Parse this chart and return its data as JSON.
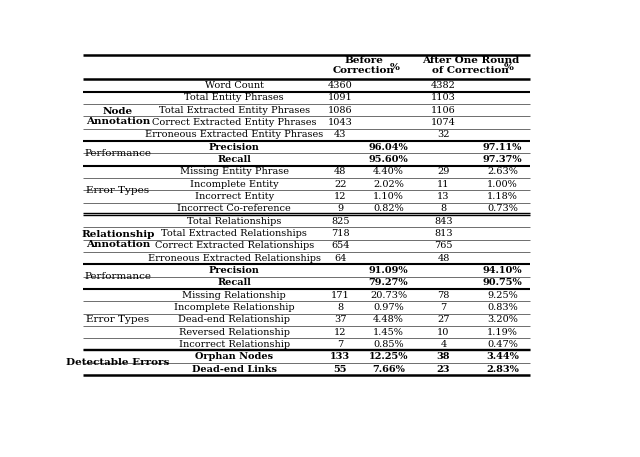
{
  "rows": [
    {
      "section": "",
      "label": "Word Count",
      "bc_val": "4360",
      "bc_pct": "",
      "ac_val": "4382",
      "ac_pct": "",
      "bold_label": false,
      "bold_pct": false,
      "section_bold": false
    },
    {
      "section": "Node\nAnnotation",
      "label": "Total Entity Phrases",
      "bc_val": "1091",
      "bc_pct": "",
      "ac_val": "1103",
      "ac_pct": "",
      "bold_label": false,
      "bold_pct": false,
      "section_bold": true
    },
    {
      "section": "",
      "label": "Total Extracted Entity Phrases",
      "bc_val": "1086",
      "bc_pct": "",
      "ac_val": "1106",
      "ac_pct": "",
      "bold_label": false,
      "bold_pct": false,
      "section_bold": false
    },
    {
      "section": "",
      "label": "Correct Extracted Entity Phrases",
      "bc_val": "1043",
      "bc_pct": "",
      "ac_val": "1074",
      "ac_pct": "",
      "bold_label": false,
      "bold_pct": false,
      "section_bold": false
    },
    {
      "section": "",
      "label": "Erroneous Extracted Entity Phrases",
      "bc_val": "43",
      "bc_pct": "",
      "ac_val": "32",
      "ac_pct": "",
      "bold_label": false,
      "bold_pct": false,
      "section_bold": false
    },
    {
      "section": "Performance",
      "label": "Precision",
      "bc_val": "",
      "bc_pct": "96.04%",
      "ac_val": "",
      "ac_pct": "97.11%",
      "bold_label": true,
      "bold_pct": true,
      "section_bold": false
    },
    {
      "section": "",
      "label": "Recall",
      "bc_val": "",
      "bc_pct": "95.60%",
      "ac_val": "",
      "ac_pct": "97.37%",
      "bold_label": true,
      "bold_pct": true,
      "section_bold": false
    },
    {
      "section": "Error Types",
      "label": "Missing Entity Phrase",
      "bc_val": "48",
      "bc_pct": "4.40%",
      "ac_val": "29",
      "ac_pct": "2.63%",
      "bold_label": false,
      "bold_pct": false,
      "section_bold": false
    },
    {
      "section": "",
      "label": "Incomplete Entity",
      "bc_val": "22",
      "bc_pct": "2.02%",
      "ac_val": "11",
      "ac_pct": "1.00%",
      "bold_label": false,
      "bold_pct": false,
      "section_bold": false
    },
    {
      "section": "",
      "label": "Incorrect Entity",
      "bc_val": "12",
      "bc_pct": "1.10%",
      "ac_val": "13",
      "ac_pct": "1.18%",
      "bold_label": false,
      "bold_pct": false,
      "section_bold": false
    },
    {
      "section": "",
      "label": "Incorrect Co-reference",
      "bc_val": "9",
      "bc_pct": "0.82%",
      "ac_val": "8",
      "ac_pct": "0.73%",
      "bold_label": false,
      "bold_pct": false,
      "section_bold": false
    },
    {
      "section": "Relationship\nAnnotation",
      "label": "Total Relationships",
      "bc_val": "825",
      "bc_pct": "",
      "ac_val": "843",
      "ac_pct": "",
      "bold_label": false,
      "bold_pct": false,
      "section_bold": true
    },
    {
      "section": "",
      "label": "Total Extracted Relationships",
      "bc_val": "718",
      "bc_pct": "",
      "ac_val": "813",
      "ac_pct": "",
      "bold_label": false,
      "bold_pct": false,
      "section_bold": false
    },
    {
      "section": "",
      "label": "Correct Extracted Relationships",
      "bc_val": "654",
      "bc_pct": "",
      "ac_val": "765",
      "ac_pct": "",
      "bold_label": false,
      "bold_pct": false,
      "section_bold": false
    },
    {
      "section": "",
      "label": "Erroneous Extracted Relationships",
      "bc_val": "64",
      "bc_pct": "",
      "ac_val": "48",
      "ac_pct": "",
      "bold_label": false,
      "bold_pct": false,
      "section_bold": false
    },
    {
      "section": "Performance",
      "label": "Precision",
      "bc_val": "",
      "bc_pct": "91.09%",
      "ac_val": "",
      "ac_pct": "94.10%",
      "bold_label": true,
      "bold_pct": true,
      "section_bold": false
    },
    {
      "section": "",
      "label": "Recall",
      "bc_val": "",
      "bc_pct": "79.27%",
      "ac_val": "",
      "ac_pct": "90.75%",
      "bold_label": true,
      "bold_pct": true,
      "section_bold": false
    },
    {
      "section": "Error Types",
      "label": "Missing Relationship",
      "bc_val": "171",
      "bc_pct": "20.73%",
      "ac_val": "78",
      "ac_pct": "9.25%",
      "bold_label": false,
      "bold_pct": false,
      "section_bold": false
    },
    {
      "section": "",
      "label": "Incomplete Relationship",
      "bc_val": "8",
      "bc_pct": "0.97%",
      "ac_val": "7",
      "ac_pct": "0.83%",
      "bold_label": false,
      "bold_pct": false,
      "section_bold": false
    },
    {
      "section": "",
      "label": "Dead-end Relationship",
      "bc_val": "37",
      "bc_pct": "4.48%",
      "ac_val": "27",
      "ac_pct": "3.20%",
      "bold_label": false,
      "bold_pct": false,
      "section_bold": false
    },
    {
      "section": "",
      "label": "Reversed Relationship",
      "bc_val": "12",
      "bc_pct": "1.45%",
      "ac_val": "10",
      "ac_pct": "1.19%",
      "bold_label": false,
      "bold_pct": false,
      "section_bold": false
    },
    {
      "section": "",
      "label": "Incorrect Relationship",
      "bc_val": "7",
      "bc_pct": "0.85%",
      "ac_val": "4",
      "ac_pct": "0.47%",
      "bold_label": false,
      "bold_pct": false,
      "section_bold": false
    },
    {
      "section": "Detectable Errors",
      "label": "Orphan Nodes",
      "bc_val": "133",
      "bc_pct": "12.25%",
      "ac_val": "38",
      "ac_pct": "3.44%",
      "bold_label": true,
      "bold_pct": true,
      "section_bold": true
    },
    {
      "section": "",
      "label": "Dead-end Links",
      "bc_val": "55",
      "bc_pct": "7.66%",
      "ac_val": "23",
      "ac_pct": "2.83%",
      "bold_label": true,
      "bold_pct": true,
      "section_bold": false
    }
  ],
  "section_spans": [
    {
      "text": "Node\nAnnotation",
      "start": 1,
      "end": 4,
      "bold": true
    },
    {
      "text": "Performance",
      "start": 5,
      "end": 6,
      "bold": false
    },
    {
      "text": "Error Types",
      "start": 7,
      "end": 10,
      "bold": false
    },
    {
      "text": "Relationship\nAnnotation",
      "start": 11,
      "end": 14,
      "bold": true
    },
    {
      "text": "Performance",
      "start": 15,
      "end": 16,
      "bold": false
    },
    {
      "text": "Error Types",
      "start": 17,
      "end": 21,
      "bold": false
    },
    {
      "text": "Detectable Errors",
      "start": 22,
      "end": 23,
      "bold": true
    }
  ],
  "thick_lines_after_row": [
    0,
    4,
    6,
    10,
    14,
    16,
    21
  ],
  "double_lines_after_row": [
    10,
    21
  ],
  "bg_color": "#ffffff"
}
